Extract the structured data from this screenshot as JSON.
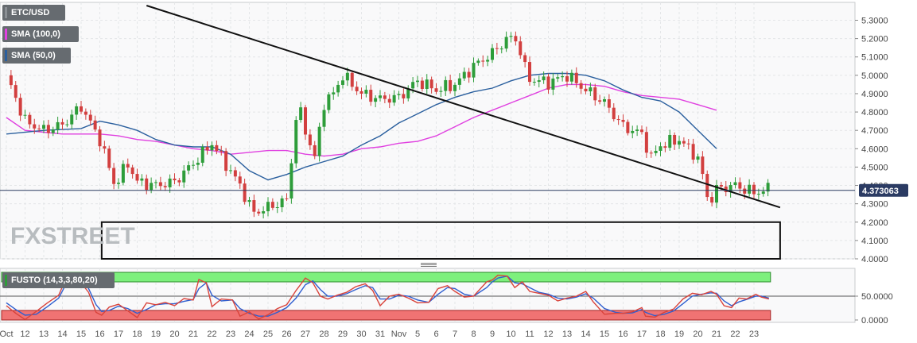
{
  "pair": "ETC/USD",
  "legend": [
    {
      "label": "ETC/USD",
      "color": "#8a8f94"
    },
    {
      "label": "SMA (100,0)",
      "color": "#e040e0"
    },
    {
      "label": "SMA (50,0)",
      "color": "#2a5f9e"
    }
  ],
  "oscillator": {
    "label": "FUSTO (14,3,3,80,20)",
    "levels": [
      "50.0000",
      "0.0000"
    ],
    "upper_zone": 80,
    "lower_zone": 20
  },
  "watermark": "FXSTREET",
  "price_badge": "4.373063",
  "colors": {
    "up": "#2e9d3a",
    "down": "#d23f3f",
    "sma50": "#2a5f9e",
    "sma100": "#e040e0",
    "overbought": "#7df07d",
    "oversold": "#f07373",
    "k_line": "#d9433b",
    "d_line": "#2f5fd0"
  },
  "chart_data": {
    "type": "candlestick",
    "y_ticks": [
      "5.3000",
      "5.2000",
      "5.1000",
      "5.0000",
      "4.9000",
      "4.8000",
      "4.7000",
      "4.6000",
      "4.5000",
      "4.4000",
      "4.3000",
      "4.2000",
      "4.1000",
      "4.0000"
    ],
    "ylim": [
      4.0,
      5.38
    ],
    "x_ticks": [
      "Oct",
      "12",
      "13",
      "14",
      "15",
      "16",
      "17",
      "18",
      "19",
      "20",
      "21",
      "22",
      "23",
      "24",
      "25",
      "26",
      "27",
      "28",
      "29",
      "30",
      "31",
      "Nov",
      "5",
      "6",
      "7",
      "8",
      "9",
      "10",
      "11",
      "12",
      "13",
      "14",
      "15",
      "16",
      "17",
      "18",
      "19",
      "20",
      "21",
      "22",
      "23"
    ],
    "sma50": [
      [
        0,
        4.68
      ],
      [
        2,
        4.7
      ],
      [
        4,
        4.71
      ],
      [
        5,
        4.75
      ],
      [
        6,
        4.73
      ],
      [
        7,
        4.7
      ],
      [
        8,
        4.65
      ],
      [
        9,
        4.62
      ],
      [
        10,
        4.61
      ],
      [
        11,
        4.61
      ],
      [
        12,
        4.57
      ],
      [
        13,
        4.48
      ],
      [
        14,
        4.43
      ],
      [
        15,
        4.46
      ],
      [
        16,
        4.5
      ],
      [
        17,
        4.53
      ],
      [
        18,
        4.56
      ],
      [
        19,
        4.62
      ],
      [
        20,
        4.67
      ],
      [
        21,
        4.74
      ],
      [
        22,
        4.79
      ],
      [
        23,
        4.84
      ],
      [
        24,
        4.88
      ],
      [
        25,
        4.91
      ],
      [
        26,
        4.93
      ],
      [
        27,
        4.97
      ],
      [
        28,
        5.0
      ],
      [
        29,
        5.01
      ],
      [
        30,
        5.01
      ],
      [
        31,
        5.0
      ],
      [
        32,
        4.97
      ],
      [
        33,
        4.92
      ],
      [
        34,
        4.88
      ],
      [
        35,
        4.86
      ],
      [
        36,
        4.8
      ],
      [
        37,
        4.7
      ],
      [
        38,
        4.6
      ]
    ],
    "sma100": [
      [
        0,
        4.77
      ],
      [
        1,
        4.7
      ],
      [
        2,
        4.69
      ],
      [
        3,
        4.68
      ],
      [
        4,
        4.68
      ],
      [
        5,
        4.68
      ],
      [
        6,
        4.67
      ],
      [
        7,
        4.65
      ],
      [
        8,
        4.64
      ],
      [
        9,
        4.62
      ],
      [
        10,
        4.6
      ],
      [
        11,
        4.59
      ],
      [
        12,
        4.57
      ],
      [
        13,
        4.58
      ],
      [
        14,
        4.59
      ],
      [
        15,
        4.59
      ],
      [
        16,
        4.57
      ],
      [
        17,
        4.56
      ],
      [
        18,
        4.57
      ],
      [
        19,
        4.6
      ],
      [
        20,
        4.61
      ],
      [
        21,
        4.63
      ],
      [
        22,
        4.64
      ],
      [
        23,
        4.67
      ],
      [
        24,
        4.72
      ],
      [
        25,
        4.77
      ],
      [
        26,
        4.81
      ],
      [
        27,
        4.85
      ],
      [
        28,
        4.89
      ],
      [
        29,
        4.93
      ],
      [
        30,
        4.95
      ],
      [
        31,
        4.95
      ],
      [
        32,
        4.94
      ],
      [
        33,
        4.91
      ],
      [
        34,
        4.89
      ],
      [
        35,
        4.88
      ],
      [
        36,
        4.87
      ],
      [
        37,
        4.84
      ],
      [
        38,
        4.81
      ]
    ],
    "trendline": [
      [
        7.5,
        5.38
      ],
      [
        41.4,
        4.28
      ]
    ],
    "support_box": {
      "x0": 5.1,
      "x1": 41.4,
      "top": 4.2,
      "bottom": 4.0
    },
    "last_price": 4.373063,
    "stoch_k": [
      [
        0,
        30
      ],
      [
        0.5,
        14
      ],
      [
        1,
        1
      ],
      [
        1.6,
        18
      ],
      [
        2.2,
        36
      ],
      [
        2.8,
        52
      ],
      [
        3.2,
        88
      ],
      [
        3.6,
        92
      ],
      [
        4,
        78
      ],
      [
        4.4,
        58
      ],
      [
        4.8,
        16
      ],
      [
        5.1,
        10
      ],
      [
        5.5,
        27
      ],
      [
        6,
        33
      ],
      [
        6.5,
        19
      ],
      [
        7,
        5
      ],
      [
        7.5,
        36
      ],
      [
        8,
        32
      ],
      [
        8.5,
        37
      ],
      [
        9,
        30
      ],
      [
        9.5,
        45
      ],
      [
        10,
        42
      ],
      [
        10.3,
        85
      ],
      [
        10.7,
        78
      ],
      [
        11,
        28
      ],
      [
        11.5,
        44
      ],
      [
        12.1,
        42
      ],
      [
        12.5,
        8
      ],
      [
        13,
        17
      ],
      [
        13.5,
        2
      ],
      [
        14,
        11
      ],
      [
        14.5,
        24
      ],
      [
        15,
        32
      ],
      [
        15.5,
        62
      ],
      [
        16,
        88
      ],
      [
        16.4,
        78
      ],
      [
        16.8,
        50
      ],
      [
        17.2,
        44
      ],
      [
        17.7,
        52
      ],
      [
        18.2,
        58
      ],
      [
        18.7,
        70
      ],
      [
        19.2,
        76
      ],
      [
        19.6,
        62
      ],
      [
        20,
        30
      ],
      [
        20.5,
        50
      ],
      [
        21,
        54
      ],
      [
        21.5,
        46
      ],
      [
        22,
        36
      ],
      [
        22.6,
        37
      ],
      [
        23.1,
        66
      ],
      [
        23.6,
        72
      ],
      [
        24,
        60
      ],
      [
        24.5,
        48
      ],
      [
        25,
        50
      ],
      [
        25.7,
        80
      ],
      [
        26,
        84
      ],
      [
        26.3,
        94
      ],
      [
        26.8,
        92
      ],
      [
        27.2,
        68
      ],
      [
        27.6,
        80
      ],
      [
        28,
        60
      ],
      [
        28.5,
        56
      ],
      [
        29,
        52
      ],
      [
        29.5,
        40
      ],
      [
        30,
        46
      ],
      [
        30.5,
        50
      ],
      [
        31,
        60
      ],
      [
        31.4,
        38
      ],
      [
        32,
        12
      ],
      [
        32.6,
        14
      ],
      [
        33,
        14
      ],
      [
        33.5,
        17
      ],
      [
        34,
        26
      ],
      [
        34.2,
        8
      ],
      [
        34.7,
        6
      ],
      [
        35.2,
        16
      ],
      [
        35.7,
        23
      ],
      [
        36.2,
        44
      ],
      [
        36.7,
        56
      ],
      [
        37.2,
        53
      ],
      [
        37.7,
        60
      ],
      [
        38,
        54
      ],
      [
        38.4,
        30
      ],
      [
        38.8,
        26
      ],
      [
        39.2,
        46
      ],
      [
        39.6,
        44
      ],
      [
        40.1,
        54
      ],
      [
        40.4,
        48
      ],
      [
        40.8,
        44
      ]
    ],
    "stoch_d": [
      [
        0,
        36
      ],
      [
        0.5,
        22
      ],
      [
        1,
        10
      ],
      [
        1.6,
        12
      ],
      [
        2.2,
        28
      ],
      [
        2.8,
        46
      ],
      [
        3.2,
        76
      ],
      [
        3.6,
        88
      ],
      [
        4,
        84
      ],
      [
        4.4,
        66
      ],
      [
        4.8,
        32
      ],
      [
        5.1,
        18
      ],
      [
        5.5,
        20
      ],
      [
        6,
        29
      ],
      [
        6.5,
        24
      ],
      [
        7,
        14
      ],
      [
        7.5,
        22
      ],
      [
        8,
        32
      ],
      [
        8.5,
        34
      ],
      [
        9,
        34
      ],
      [
        9.5,
        39
      ],
      [
        10,
        43
      ],
      [
        10.3,
        66
      ],
      [
        10.7,
        78
      ],
      [
        11,
        52
      ],
      [
        11.5,
        40
      ],
      [
        12.1,
        42
      ],
      [
        12.5,
        24
      ],
      [
        13,
        14
      ],
      [
        13.5,
        8
      ],
      [
        14,
        8
      ],
      [
        14.5,
        16
      ],
      [
        15,
        26
      ],
      [
        15.5,
        46
      ],
      [
        16,
        74
      ],
      [
        16.4,
        82
      ],
      [
        16.8,
        64
      ],
      [
        17.2,
        50
      ],
      [
        17.7,
        50
      ],
      [
        18.2,
        55
      ],
      [
        18.7,
        64
      ],
      [
        19.2,
        72
      ],
      [
        19.6,
        68
      ],
      [
        20,
        44
      ],
      [
        20.5,
        44
      ],
      [
        21,
        52
      ],
      [
        21.5,
        50
      ],
      [
        22,
        42
      ],
      [
        22.6,
        37
      ],
      [
        23.1,
        54
      ],
      [
        23.6,
        68
      ],
      [
        24,
        66
      ],
      [
        24.5,
        54
      ],
      [
        25,
        50
      ],
      [
        25.7,
        68
      ],
      [
        26,
        80
      ],
      [
        26.3,
        88
      ],
      [
        26.8,
        92
      ],
      [
        27.2,
        78
      ],
      [
        27.6,
        76
      ],
      [
        28,
        68
      ],
      [
        28.5,
        58
      ],
      [
        29,
        54
      ],
      [
        29.5,
        46
      ],
      [
        30,
        44
      ],
      [
        30.5,
        48
      ],
      [
        31,
        55
      ],
      [
        31.4,
        46
      ],
      [
        32,
        24
      ],
      [
        32.6,
        16
      ],
      [
        33,
        14
      ],
      [
        33.5,
        15
      ],
      [
        34,
        22
      ],
      [
        34.2,
        16
      ],
      [
        34.7,
        9
      ],
      [
        35.2,
        12
      ],
      [
        35.7,
        19
      ],
      [
        36.2,
        34
      ],
      [
        36.7,
        50
      ],
      [
        37.2,
        54
      ],
      [
        37.7,
        57
      ],
      [
        38,
        56
      ],
      [
        38.4,
        40
      ],
      [
        38.8,
        30
      ],
      [
        39.2,
        38
      ],
      [
        39.6,
        43
      ],
      [
        40.1,
        50
      ],
      [
        40.4,
        50
      ],
      [
        40.8,
        46
      ]
    ]
  }
}
